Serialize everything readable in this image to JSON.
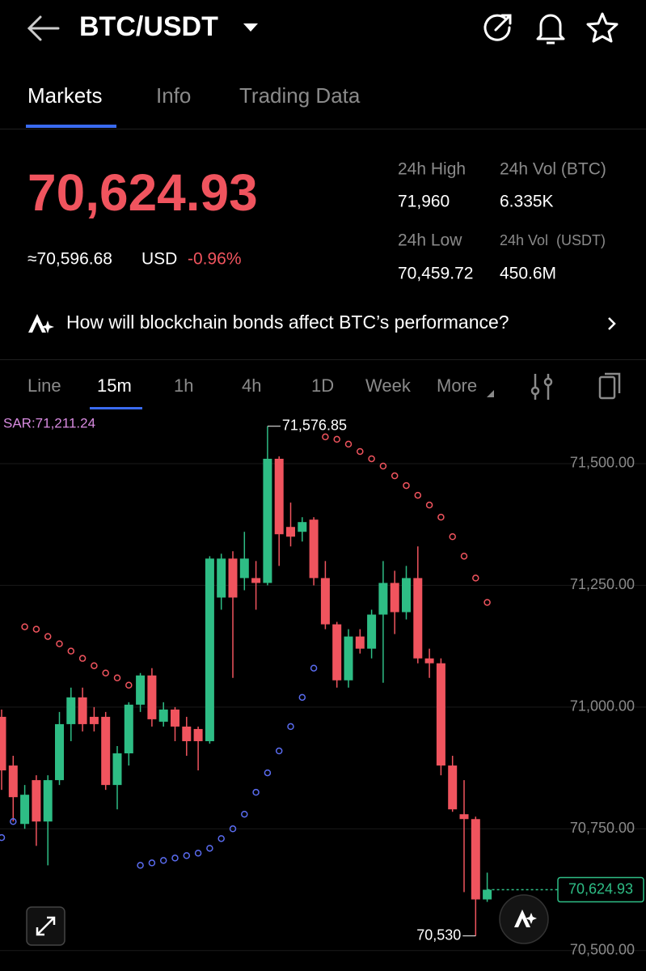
{
  "header": {
    "title": "BTC/USDT"
  },
  "tabs": [
    "Markets",
    "Info",
    "Trading Data"
  ],
  "price": {
    "last": "70,624.93",
    "usd": "≈70,596.68",
    "usd_unit": "USD",
    "change": "-0.96%"
  },
  "stats": [
    {
      "label": "24h High",
      "value": "71,960"
    },
    {
      "label": "24h Vol (BTC)",
      "value": "6.335K"
    },
    {
      "label": "24h Low",
      "value": "70,459.72"
    },
    {
      "label": "24h Vol  (USDT)",
      "value": "450.6M"
    }
  ],
  "ai_prompt": "How will blockchain bonds affect BTC’s performance?",
  "intervals": [
    "Line",
    "15m",
    "1h",
    "4h",
    "1D",
    "Week",
    "More"
  ],
  "chart_data": {
    "type": "candlestick",
    "sar_label": "SAR:71,211.24",
    "up_color": "#2ebd85",
    "down_color": "#f0545e",
    "sar_above_color": "#f0545e",
    "sar_below_color": "#5a6cf0",
    "ylim": [
      70458,
      71608
    ],
    "yticks": [
      {
        "value": 70500,
        "label": "70,500.00"
      },
      {
        "value": 70750,
        "label": "70,750.00"
      },
      {
        "value": 71000,
        "label": "71,000.00"
      },
      {
        "value": 71250,
        "label": "71,250.00"
      },
      {
        "value": 71500,
        "label": "71,500.00"
      }
    ],
    "grid": true,
    "candles": {
      "open": [
        70980,
        70880,
        70760,
        70850,
        70765,
        70850,
        70965,
        71020,
        70980,
        70980,
        70840,
        70905,
        71005,
        71065,
        70970,
        70995,
        70960,
        70955,
        70930,
        71225,
        71305,
        71265,
        71265,
        71255,
        71510,
        71370,
        71360,
        71385,
        71265,
        71170,
        71055,
        71145,
        71120,
        71190,
        71255,
        71195,
        71265,
        71100,
        71090,
        70880,
        70780,
        70770,
        70605
      ],
      "high": [
        70995,
        70900,
        70840,
        70860,
        70860,
        70990,
        71040,
        71040,
        71000,
        70990,
        70920,
        71010,
        71070,
        71080,
        71010,
        71000,
        70980,
        70960,
        71310,
        71315,
        71320,
        71360,
        71300,
        71576.85,
        71515,
        71420,
        71390,
        71390,
        71300,
        71175,
        71160,
        71160,
        71200,
        71300,
        71280,
        71290,
        71330,
        71120,
        71100,
        70900,
        70850,
        70775,
        70660
      ],
      "low": [
        70830,
        70765,
        70750,
        70715,
        70675,
        70840,
        70930,
        70950,
        70950,
        70830,
        70790,
        70880,
        70990,
        70960,
        70960,
        70930,
        70900,
        70870,
        70925,
        71200,
        71060,
        71240,
        71200,
        71250,
        71290,
        71330,
        71340,
        71250,
        71160,
        71040,
        71040,
        71110,
        71100,
        71050,
        71150,
        71180,
        71090,
        71060,
        70860,
        70785,
        70620,
        70530,
        70600
      ],
      "close": [
        70870,
        70815,
        70820,
        70765,
        70850,
        70965,
        71020,
        70965,
        70965,
        70840,
        70905,
        71005,
        71065,
        70975,
        70995,
        70960,
        70930,
        70930,
        71305,
        71305,
        71225,
        71305,
        71255,
        71510,
        71355,
        71350,
        71380,
        71265,
        71170,
        71055,
        71145,
        71120,
        71190,
        71255,
        71195,
        71265,
        71100,
        71090,
        70880,
        70790,
        70770,
        70605,
        70624.93
      ]
    },
    "sar": [
      70732,
      70765,
      71165,
      71160,
      71145,
      71130,
      71115,
      71100,
      71085,
      71070,
      71060,
      71045,
      70675,
      70680,
      70685,
      70690,
      70695,
      70700,
      70710,
      70730,
      70750,
      70780,
      70825,
      70865,
      70910,
      70960,
      71020,
      71080,
      71555,
      71550,
      71540,
      71525,
      71510,
      71495,
      71475,
      71455,
      71435,
      71415,
      71390,
      71350,
      71310,
      71265,
      71215
    ],
    "high_label": {
      "index": 23,
      "value": 71576.85,
      "label": "71,576.85"
    },
    "low_label": {
      "index": 41,
      "value": 70530,
      "label": "70,530"
    },
    "last_price": {
      "value": 70624.93,
      "label": "70,624.93"
    }
  }
}
